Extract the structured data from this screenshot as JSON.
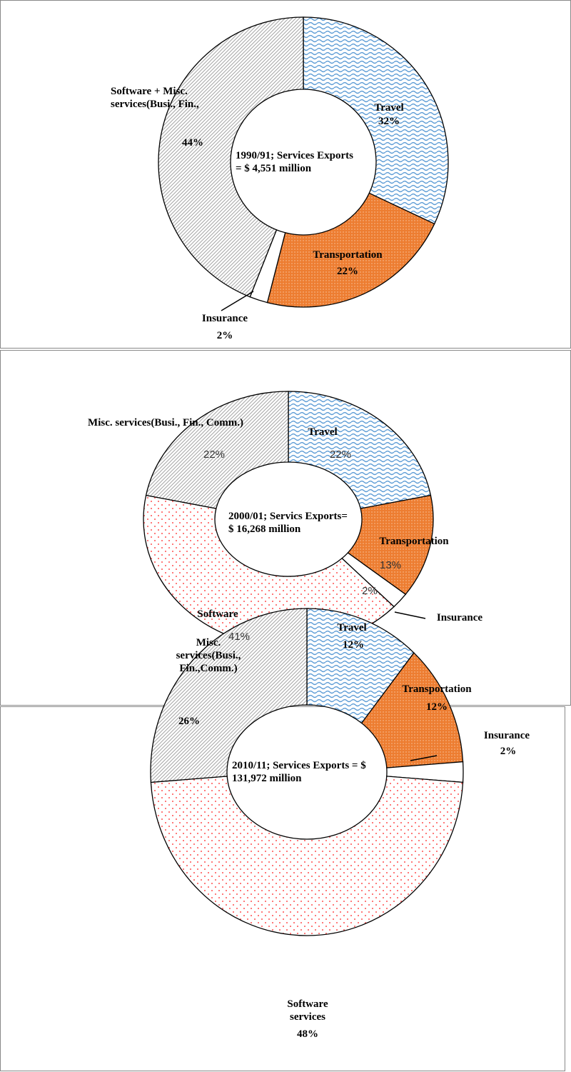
{
  "chart_data": [
    {
      "type": "pie",
      "donut": true,
      "title": "1990/91; Services Exports = $ 4,551 million",
      "categories": [
        "Travel",
        "Transportation",
        "Insurance",
        "Software + Misc. services(Busi., Fin.,"
      ],
      "values": [
        32,
        22,
        2,
        44
      ],
      "value_labels": [
        "32%",
        "22%",
        "2%",
        "44%"
      ],
      "colors": [
        "#5b9bd5",
        "#ed7d31",
        "#ffffff",
        "#a6a6a6"
      ]
    },
    {
      "type": "pie",
      "donut": true,
      "title": "2000/01; Servics Exports= $ 16,268 million",
      "categories": [
        "Travel",
        "Transportation",
        "Insurance",
        "Software",
        "Misc. services(Busi., Fin., Comm.)"
      ],
      "values": [
        22,
        13,
        2,
        41,
        22
      ],
      "value_labels": [
        "22%",
        "13%",
        "2%",
        "41%",
        "22%"
      ],
      "colors": [
        "#5b9bd5",
        "#ed7d31",
        "#ffffff",
        "#ff5050",
        "#a6a6a6"
      ]
    },
    {
      "type": "pie",
      "donut": true,
      "title": "2010/11; Services Exports = $ 131,972 million",
      "categories": [
        "Travel",
        "Transportation",
        "Insurance",
        "Software services",
        "Misc. services(Busi., Fin.,Comm.)"
      ],
      "values": [
        12,
        12,
        2,
        48,
        26
      ],
      "value_labels": [
        "12%",
        "12%",
        "2%",
        "48%",
        "26%"
      ],
      "colors": [
        "#5b9bd5",
        "#ed7d31",
        "#ffffff",
        "#ff5050",
        "#a6a6a6"
      ]
    }
  ]
}
